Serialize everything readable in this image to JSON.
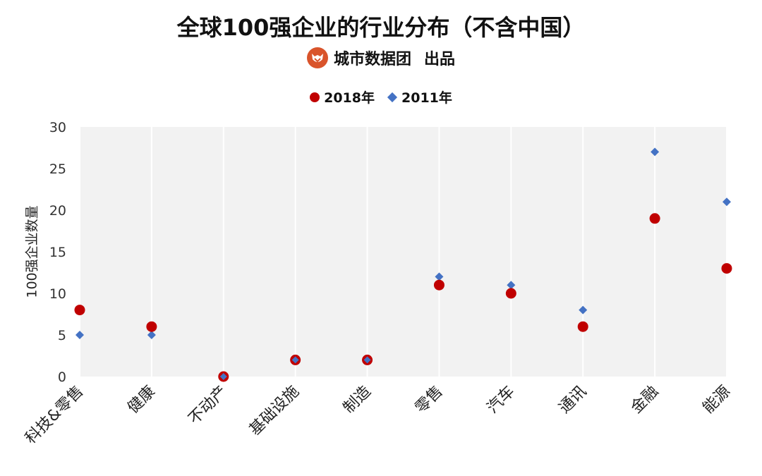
{
  "title": "全球100强企业的行业分布（不含中国）",
  "brand": {
    "text": "城市数据团",
    "suffix": "出品",
    "logo_icon": "fox-face-icon"
  },
  "colors": {
    "series_2018": "#c00000",
    "series_2011": "#4472c4",
    "plot_bg": "#f2f2f2",
    "gridline": "#ffffff"
  },
  "chart_data": {
    "type": "scatter",
    "title": "全球100强企业的行业分布（不含中国）",
    "xlabel": "",
    "ylabel": "100强企业数量",
    "categories": [
      "科技&零售",
      "健康",
      "不动产",
      "基础设施",
      "制造",
      "零售",
      "汽车",
      "通讯",
      "金融",
      "能源"
    ],
    "ylim": [
      0,
      30
    ],
    "yticks": [
      0,
      5,
      10,
      15,
      20,
      25,
      30
    ],
    "grid": "vertical",
    "legend_position": "top-center",
    "series": [
      {
        "name": "2018年",
        "marker": "circle",
        "values": [
          8,
          6,
          0,
          2,
          2,
          11,
          10,
          6,
          19,
          13
        ]
      },
      {
        "name": "2011年",
        "marker": "diamond",
        "values": [
          5,
          5,
          0,
          2,
          2,
          12,
          11,
          8,
          27,
          21
        ]
      }
    ]
  }
}
